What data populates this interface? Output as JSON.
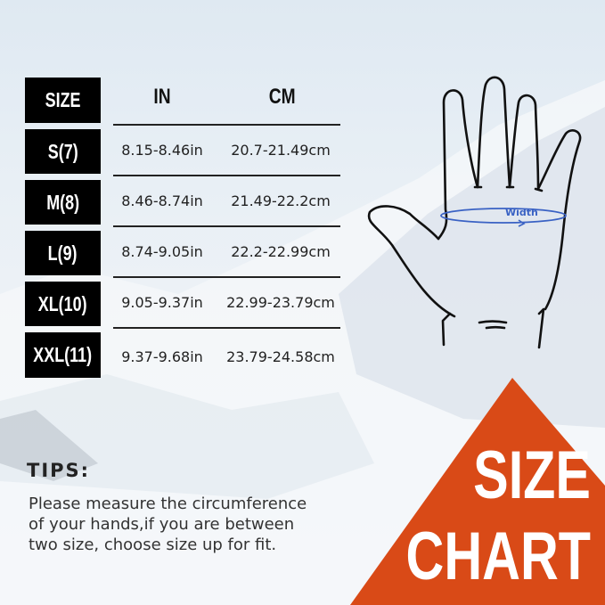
{
  "table": {
    "headers": {
      "size": "SIZE",
      "in": "IN",
      "cm": "CM"
    },
    "rows": [
      {
        "size": "S(7)",
        "in": "8.15-8.46in",
        "cm": "20.7-21.49cm"
      },
      {
        "size": "M(8)",
        "in": "8.46-8.74in",
        "cm": "21.49-22.2cm"
      },
      {
        "size": "L(9)",
        "in": "8.74-9.05in",
        "cm": "22.2-22.99cm"
      },
      {
        "size": "XL(10)",
        "in": "9.05-9.37in",
        "cm": "22.99-23.79cm"
      },
      {
        "size": "XXL(11)",
        "in": "9.37-9.68in",
        "cm": "23.79-24.58cm"
      }
    ]
  },
  "diagram": {
    "width_label": "Width",
    "width_color": "#3a62c4"
  },
  "tips": {
    "title": "TIPS:",
    "lines": [
      "Please measure the circumference",
      "of your hands,if you are between",
      "two size, choose size up for fit."
    ]
  },
  "badge": {
    "line1": "SIZE",
    "line2": "CHART",
    "color": "#d94a17"
  }
}
